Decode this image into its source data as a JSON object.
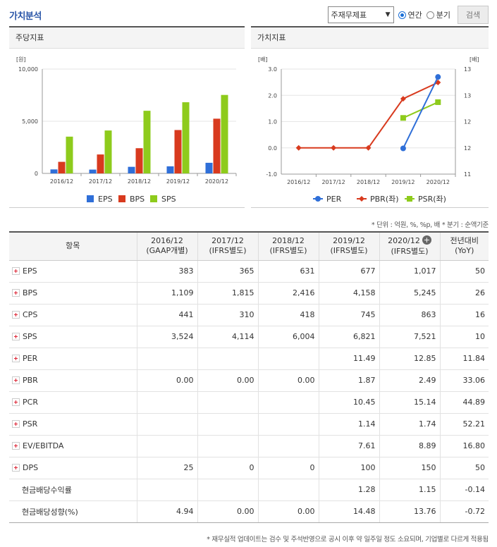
{
  "header": {
    "title": "가치분석",
    "select_value": "주재무제표",
    "radio_annual": "연간",
    "radio_quarter": "분기",
    "search_label": "검색"
  },
  "left_panel": {
    "title": "주당지표"
  },
  "right_panel": {
    "title": "가치지표"
  },
  "chart_data": [
    {
      "type": "bar",
      "title": "주당지표",
      "ylabel": "[원]",
      "ylim": [
        0,
        10000
      ],
      "yticks": [
        "0",
        "5,000",
        "10,000"
      ],
      "yticks_values": [
        0,
        5000,
        10000
      ],
      "categories": [
        "2016/12",
        "2017/12",
        "2018/12",
        "2019/12",
        "2020/12"
      ],
      "series": [
        {
          "name": "EPS",
          "color": "#2f6fd8",
          "values": [
            383,
            365,
            631,
            677,
            1017
          ]
        },
        {
          "name": "BPS",
          "color": "#d83a1e",
          "values": [
            1109,
            1815,
            2416,
            4158,
            5245
          ]
        },
        {
          "name": "SPS",
          "color": "#8ecb1c",
          "values": [
            3524,
            4114,
            6004,
            6821,
            7521
          ]
        }
      ],
      "legend": "bottom"
    },
    {
      "type": "line",
      "title": "가치지표",
      "ylabel_left": "[배]",
      "ylabel_right": "[배]",
      "ylim_left": [
        -1.0,
        3.0
      ],
      "yticks_left": [
        "-1.0",
        "0.0",
        "1.0",
        "2.0",
        "3.0"
      ],
      "ylim_right": [
        11,
        13
      ],
      "yticks_right": [
        "11",
        "12",
        "12",
        "13",
        "13"
      ],
      "categories": [
        "2016/12",
        "2017/12",
        "2018/12",
        "2019/12",
        "2020/12"
      ],
      "series": [
        {
          "name": "PER",
          "color": "#2f6fd8",
          "marker": "circle",
          "axis": "right",
          "values": [
            null,
            null,
            null,
            11.49,
            12.85
          ]
        },
        {
          "name": "PBR(좌)",
          "color": "#d83a1e",
          "marker": "diamond",
          "axis": "left",
          "values": [
            0.0,
            0.0,
            0.0,
            1.87,
            2.49
          ]
        },
        {
          "name": "PSR(좌)",
          "color": "#8ecb1c",
          "marker": "square",
          "axis": "left",
          "values": [
            null,
            null,
            null,
            1.14,
            1.74
          ]
        }
      ],
      "legend": "bottom"
    }
  ],
  "unit_note": "* 단위 : 억원, %, %p, 배    * 분기 : 순액기준",
  "table": {
    "headers": [
      {
        "l1": "항목",
        "l2": ""
      },
      {
        "l1": "2016/12",
        "l2": "(GAAP개별)"
      },
      {
        "l1": "2017/12",
        "l2": "(IFRS별도)"
      },
      {
        "l1": "2018/12",
        "l2": "(IFRS별도)"
      },
      {
        "l1": "2019/12",
        "l2": "(IFRS별도)"
      },
      {
        "l1": "2020/12",
        "l2": "(IFRS별도)"
      },
      {
        "l1": "전년대비",
        "l2": "(YoY)"
      }
    ],
    "rows": [
      {
        "label": "EPS",
        "plus": true,
        "cells": [
          "383",
          "365",
          "631",
          "677",
          "1,017",
          "50"
        ]
      },
      {
        "label": "BPS",
        "plus": true,
        "cells": [
          "1,109",
          "1,815",
          "2,416",
          "4,158",
          "5,245",
          "26"
        ]
      },
      {
        "label": "CPS",
        "plus": true,
        "cells": [
          "441",
          "310",
          "418",
          "745",
          "863",
          "16"
        ]
      },
      {
        "label": "SPS",
        "plus": true,
        "cells": [
          "3,524",
          "4,114",
          "6,004",
          "6,821",
          "7,521",
          "10"
        ]
      },
      {
        "label": "PER",
        "plus": true,
        "cells": [
          "",
          "",
          "",
          "11.49",
          "12.85",
          "11.84"
        ]
      },
      {
        "label": "PBR",
        "plus": true,
        "cells": [
          "0.00",
          "0.00",
          "0.00",
          "1.87",
          "2.49",
          "33.06"
        ]
      },
      {
        "label": "PCR",
        "plus": true,
        "cells": [
          "",
          "",
          "",
          "10.45",
          "15.14",
          "44.89"
        ]
      },
      {
        "label": "PSR",
        "plus": true,
        "cells": [
          "",
          "",
          "",
          "1.14",
          "1.74",
          "52.21"
        ]
      },
      {
        "label": "EV/EBITDA",
        "plus": true,
        "cells": [
          "",
          "",
          "",
          "7.61",
          "8.89",
          "16.80"
        ]
      },
      {
        "label": "DPS",
        "plus": true,
        "cells": [
          "25",
          "0",
          "0",
          "100",
          "150",
          "50"
        ]
      },
      {
        "label": "현금배당수익률",
        "plus": false,
        "cells": [
          "",
          "",
          "",
          "1.28",
          "1.15",
          "-0.14"
        ]
      },
      {
        "label": "현금배당성향(%)",
        "plus": false,
        "cells": [
          "4.94",
          "0.00",
          "0.00",
          "14.48",
          "13.76",
          "-0.72"
        ]
      }
    ]
  },
  "footnote": "* 재무실적 업데이트는 검수 및 주석반영으로 공시 이후 약 일주일 정도 소요되며, 기업별로 다르게 적용됨"
}
